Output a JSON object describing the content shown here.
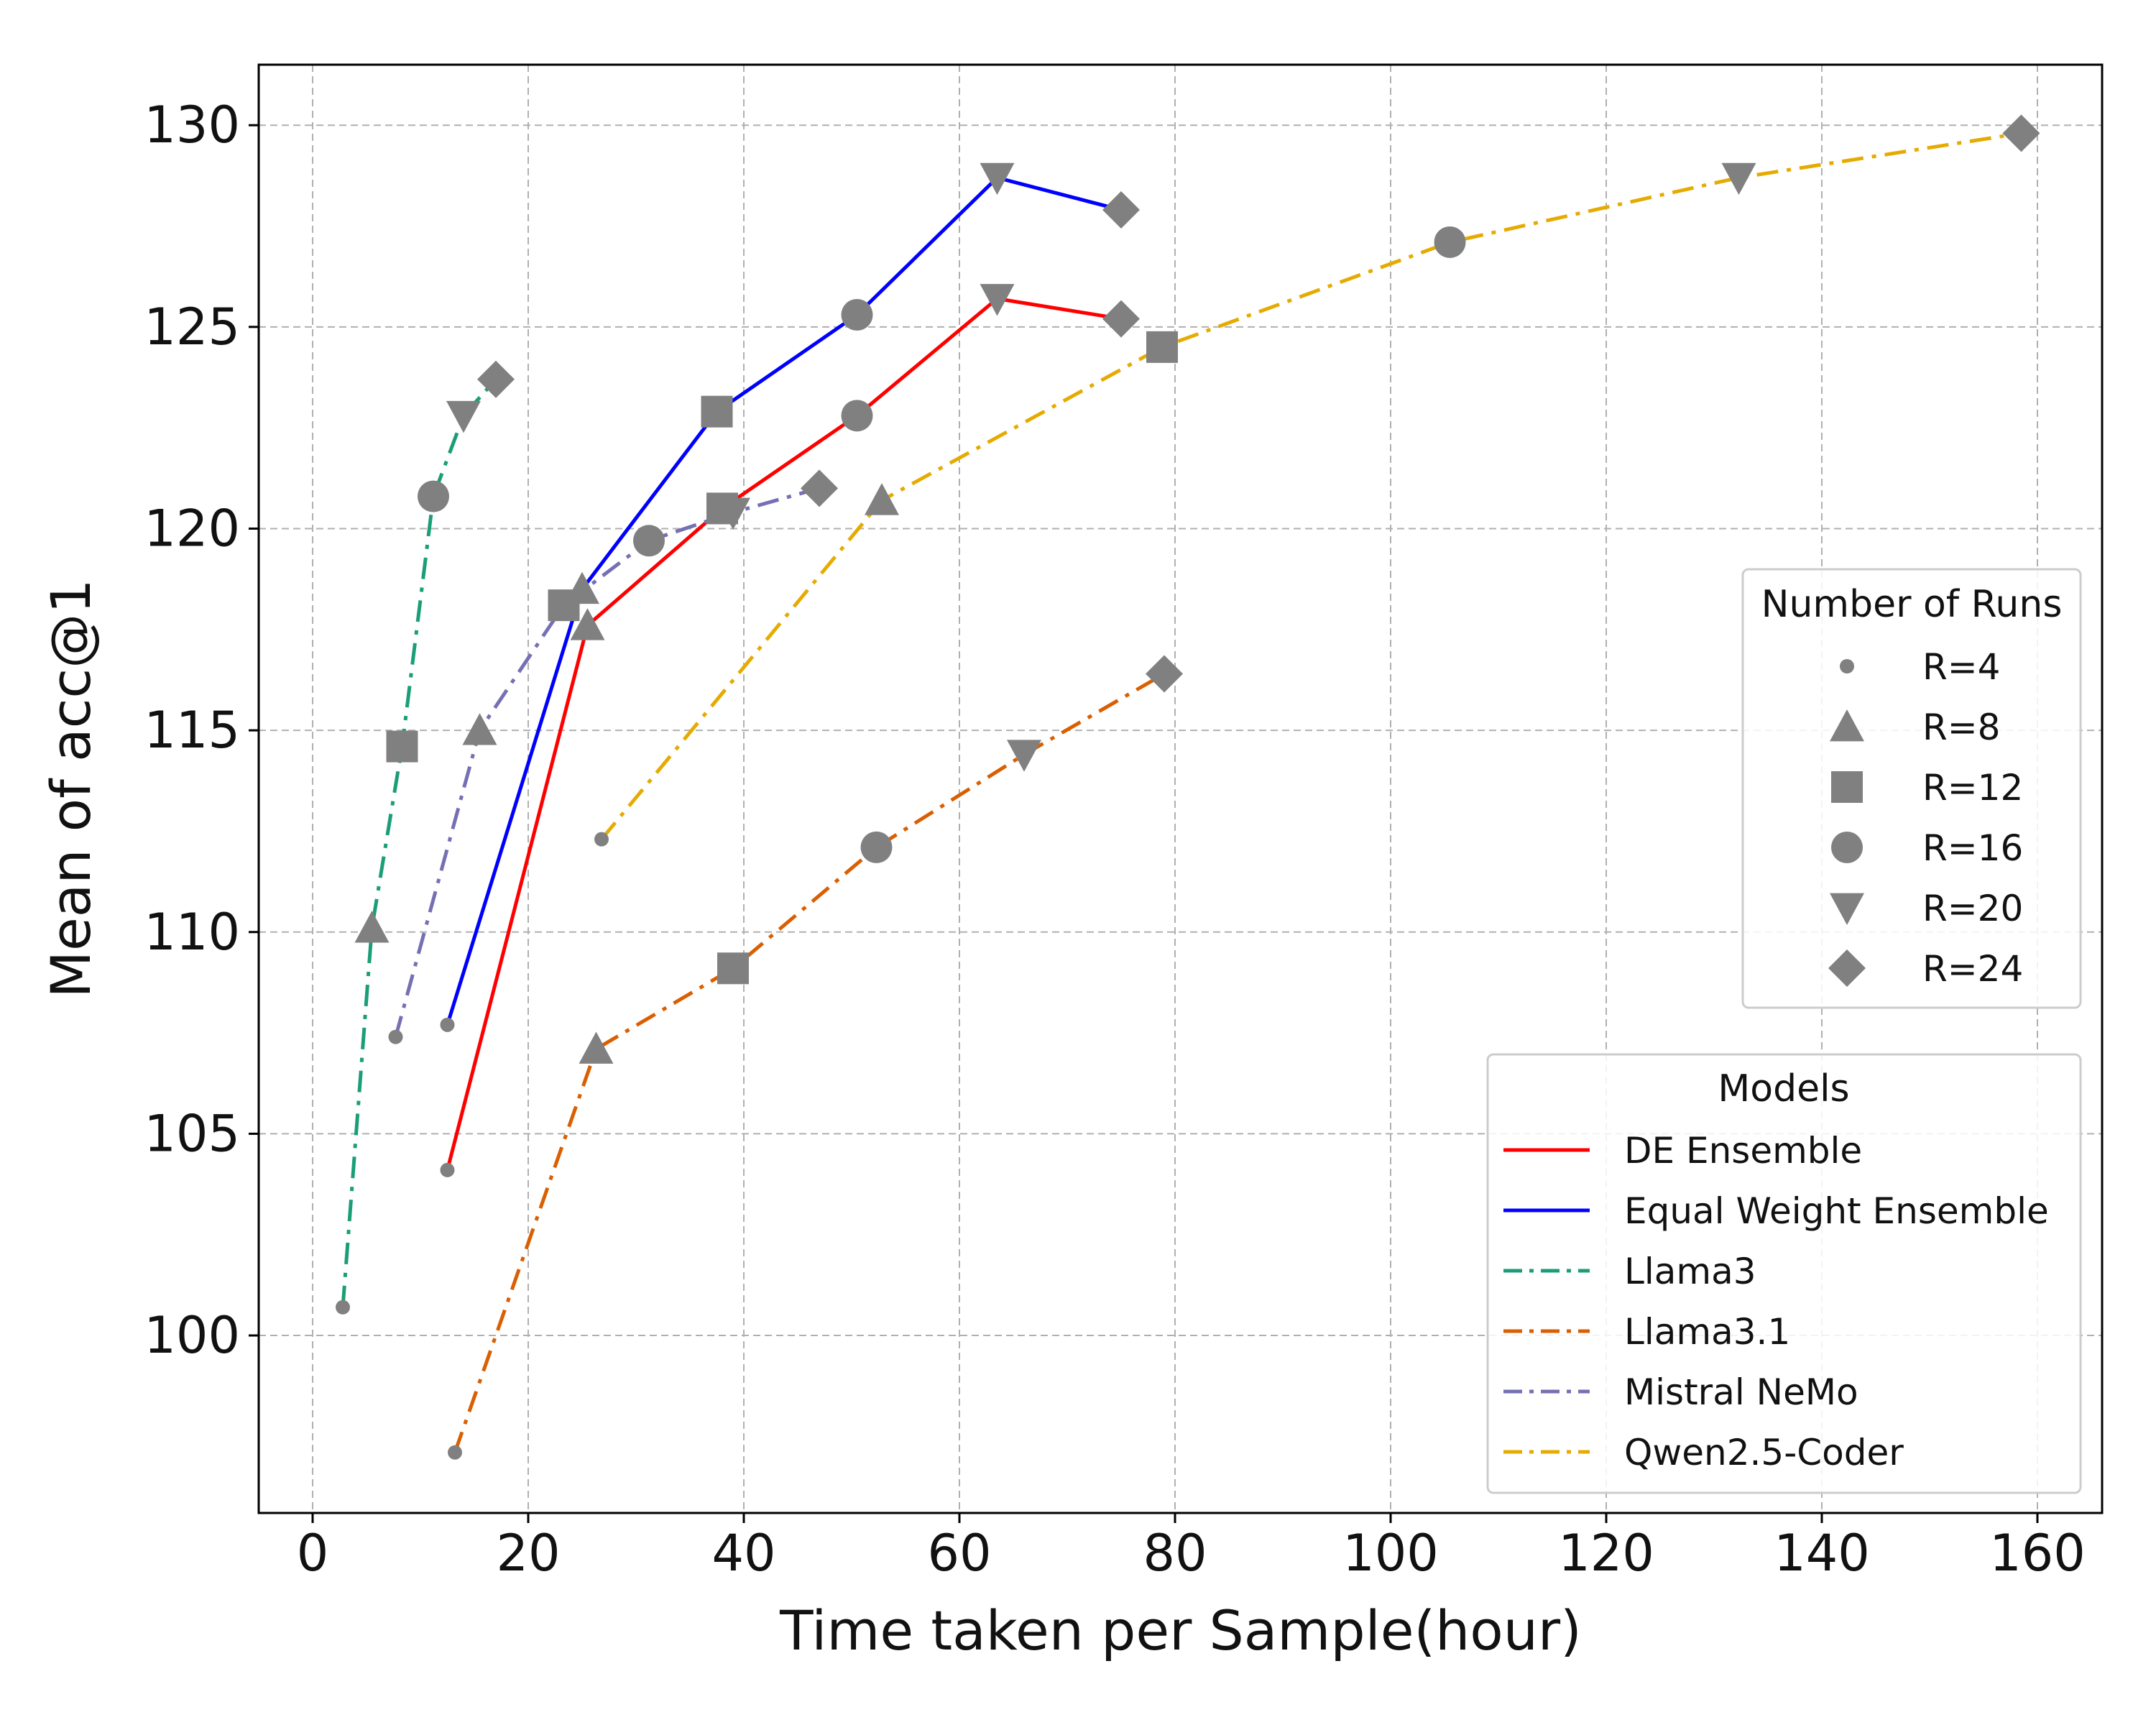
{
  "chart_data": {
    "type": "line",
    "xlabel": "Time taken per Sample(hour)",
    "ylabel": "Mean of acc@1",
    "xlim": [
      -5,
      166
    ],
    "ylim": [
      95.6,
      131.5
    ],
    "xticks": [
      0,
      20,
      40,
      60,
      80,
      100,
      120,
      140,
      160
    ],
    "yticks": [
      100,
      105,
      110,
      115,
      120,
      125,
      130
    ],
    "grid": true,
    "marker_color": "#808080",
    "runs_legend": {
      "title": "Number of Runs",
      "placement": "center-right",
      "entries": [
        {
          "label": "R=4",
          "marker": "small-circle"
        },
        {
          "label": "R=8",
          "marker": "triangle-up"
        },
        {
          "label": "R=12",
          "marker": "square"
        },
        {
          "label": "R=16",
          "marker": "circle"
        },
        {
          "label": "R=20",
          "marker": "triangle-down"
        },
        {
          "label": "R=24",
          "marker": "diamond"
        }
      ]
    },
    "models_legend": {
      "title": "Models",
      "placement": "lower-right"
    },
    "series": [
      {
        "name": "DE Ensemble",
        "color": "#ff0000",
        "style": "solid",
        "points": [
          [
            12.5,
            104.1,
            "R=4"
          ],
          [
            25.5,
            117.6,
            "R=8"
          ],
          [
            38,
            120.5,
            "R=12"
          ],
          [
            50.5,
            122.8,
            "R=16"
          ],
          [
            63.5,
            125.7,
            "R=20"
          ],
          [
            75,
            125.2,
            "R=24"
          ]
        ]
      },
      {
        "name": "Equal Weight Ensemble",
        "color": "#0000ff",
        "style": "solid",
        "points": [
          [
            12.5,
            107.7,
            "R=4"
          ],
          [
            25,
            118.5,
            "R=8"
          ],
          [
            37.5,
            122.9,
            "R=12"
          ],
          [
            50.5,
            125.3,
            "R=16"
          ],
          [
            63.5,
            128.7,
            "R=20"
          ],
          [
            75,
            127.9,
            "R=24"
          ]
        ]
      },
      {
        "name": "Llama3",
        "color": "#1b9e77",
        "style": "dashdot",
        "points": [
          [
            2.8,
            100.7,
            "R=4"
          ],
          [
            5.5,
            110.1,
            "R=8"
          ],
          [
            8.3,
            114.6,
            "R=12"
          ],
          [
            11.2,
            120.8,
            "R=16"
          ],
          [
            14,
            122.8,
            "R=20"
          ],
          [
            17,
            123.7,
            "R=24"
          ]
        ]
      },
      {
        "name": "Llama3.1",
        "color": "#d95f02",
        "style": "dashdot",
        "points": [
          [
            13.2,
            97.1,
            "R=4"
          ],
          [
            26.3,
            107.1,
            "R=8"
          ],
          [
            39,
            109.1,
            "R=12"
          ],
          [
            52.3,
            112.1,
            "R=16"
          ],
          [
            66,
            114.4,
            "R=20"
          ],
          [
            79,
            116.4,
            "R=24"
          ]
        ]
      },
      {
        "name": "Mistral NeMo",
        "color": "#7570b3",
        "style": "dashdot",
        "points": [
          [
            7.7,
            107.4,
            "R=4"
          ],
          [
            15.5,
            115,
            "R=8"
          ],
          [
            23.3,
            118.1,
            "R=12"
          ],
          [
            31.2,
            119.7,
            "R=16"
          ],
          [
            39,
            120.4,
            "R=20"
          ],
          [
            47,
            121,
            "R=24"
          ]
        ]
      },
      {
        "name": "Qwen2.5-Coder",
        "color": "#e6ab02",
        "style": "dashdot",
        "points": [
          [
            26.8,
            112.3,
            "R=4"
          ],
          [
            52.8,
            120.7,
            "R=8"
          ],
          [
            78.8,
            124.5,
            "R=12"
          ],
          [
            105.5,
            127.1,
            "R=16"
          ],
          [
            132.3,
            128.7,
            "R=20"
          ],
          [
            158.5,
            129.8,
            "R=24"
          ]
        ]
      }
    ]
  }
}
